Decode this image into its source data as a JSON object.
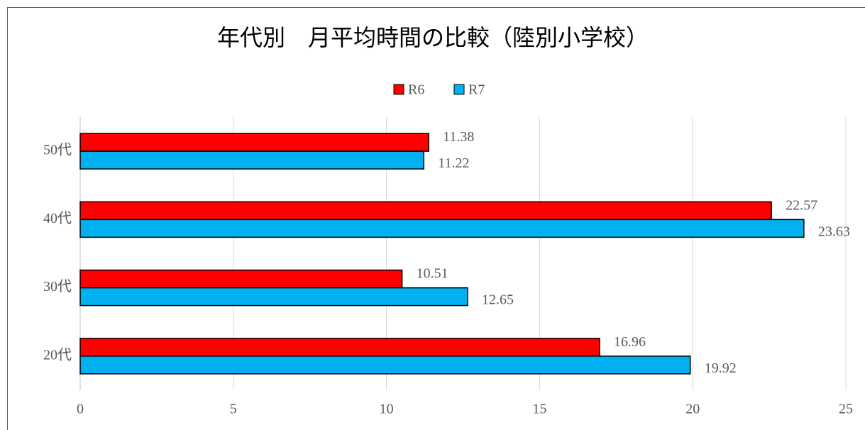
{
  "chart_data": {
    "type": "hbar",
    "title": "年代別　月平均時間の比較（陸別小学校）",
    "categories": [
      "20代",
      "30代",
      "40代",
      "50代"
    ],
    "series": [
      {
        "name": "R6",
        "color": "#ff0000",
        "values": [
          16.96,
          10.51,
          22.57,
          11.38
        ]
      },
      {
        "name": "R7",
        "color": "#00b0f0",
        "values": [
          19.92,
          12.65,
          23.63,
          11.22
        ]
      }
    ],
    "xlim": [
      0,
      25
    ],
    "xticks": [
      0,
      5,
      10,
      15,
      20,
      25
    ],
    "grid": true,
    "legend": "top"
  }
}
